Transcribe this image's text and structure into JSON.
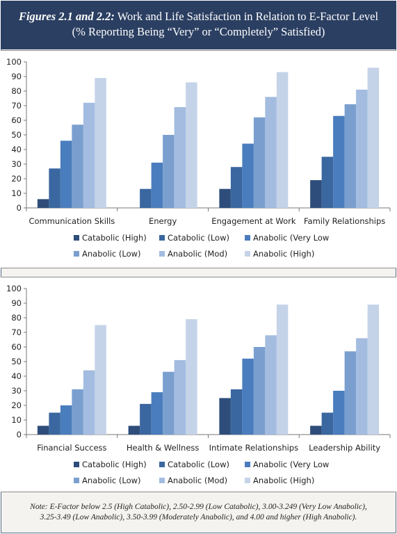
{
  "header": {
    "title_em": "Figures 2.1 and 2.2:",
    "title_rest": " Work and Life Satisfaction in Relation to E-Factor Level",
    "subtitle": "(% Reporting Being “Very” or “Completely” Satisfied)"
  },
  "note": {
    "line1": "Note: E-Factor below 2.5 (High Catabolic), 2.50-2.99 (Low Catabolic), 3.00-3.249 (Very Low Anabolic),",
    "line2": "3.25-3.49 (Low Anabolic), 3.50-3.99 (Moderately Anabolic), and 4.00 and higher (High Anabolic)."
  },
  "series_colors": [
    "#2e4d7a",
    "#3a67a0",
    "#4a7dbd",
    "#7a9fcf",
    "#a3bce0",
    "#c5d3e8"
  ],
  "chart_data": [
    {
      "type": "bar",
      "categories": [
        "Communication Skills",
        "Energy",
        "Engagement at Work",
        "Family Relationships"
      ],
      "ylim": [
        0,
        100
      ],
      "yticks": [
        0,
        10,
        20,
        30,
        40,
        50,
        60,
        70,
        80,
        90,
        100
      ],
      "grid": false,
      "legend": "bottom",
      "series": [
        {
          "name": "Catabolic (High)",
          "values": [
            6,
            0,
            13,
            19
          ]
        },
        {
          "name": "Catabolic (Low)",
          "values": [
            27,
            13,
            28,
            35
          ]
        },
        {
          "name": "Anabolic (Very Low",
          "values": [
            46,
            31,
            44,
            63
          ]
        },
        {
          "name": "Anabolic (Low)",
          "values": [
            57,
            50,
            62,
            71
          ]
        },
        {
          "name": "Anabolic (Mod)",
          "values": [
            72,
            69,
            76,
            81
          ]
        },
        {
          "name": "Anabolic (High)",
          "values": [
            89,
            86,
            93,
            96
          ]
        }
      ]
    },
    {
      "type": "bar",
      "categories": [
        "Financial Success",
        "Health & Wellness",
        "Intimate Relationships",
        "Leadership Ability"
      ],
      "ylim": [
        0,
        100
      ],
      "yticks": [
        0,
        10,
        20,
        30,
        40,
        50,
        60,
        70,
        80,
        90,
        100
      ],
      "grid": false,
      "legend": "bottom",
      "series": [
        {
          "name": "Catabolic (High)",
          "values": [
            6,
            6,
            25,
            6
          ]
        },
        {
          "name": "Catabolic (Low)",
          "values": [
            15,
            21,
            31,
            15
          ]
        },
        {
          "name": "Anabolic (Very Low",
          "values": [
            20,
            29,
            52,
            30
          ]
        },
        {
          "name": "Anabolic (Low)",
          "values": [
            31,
            43,
            60,
            57
          ]
        },
        {
          "name": "Anabolic (Mod)",
          "values": [
            44,
            51,
            68,
            66
          ]
        },
        {
          "name": "Anabolic (High)",
          "values": [
            75,
            79,
            89,
            89
          ]
        }
      ]
    }
  ]
}
